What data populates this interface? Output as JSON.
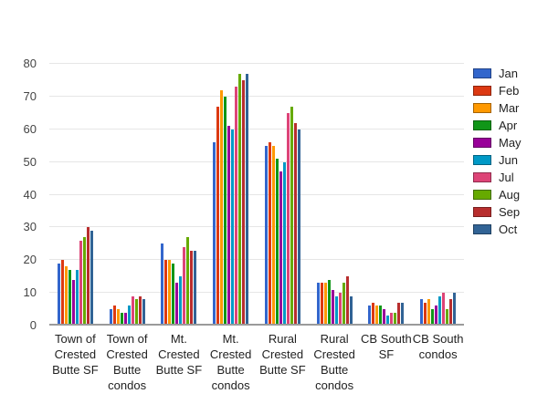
{
  "chart_data": {
    "type": "bar",
    "title": "",
    "xlabel": "",
    "ylabel": "",
    "ylim": [
      0,
      80
    ],
    "yticks": [
      0,
      10,
      20,
      30,
      40,
      50,
      60,
      70,
      80
    ],
    "grid": true,
    "legend_position": "right",
    "axis_color": "#9a9a9a",
    "gridline_color": "#e6e6e6",
    "categories": [
      "Town of Crested Butte SF",
      "Town of Crested Butte condos",
      "Mt. Crested Butte SF",
      "Mt. Crested Butte condos",
      "Rural Crested Butte SF",
      "Rural Crested Butte condos",
      "CB South SF",
      "CB South condos"
    ],
    "category_label_lines": [
      [
        "Town of",
        "Crested",
        "Butte SF"
      ],
      [
        "Town of",
        "Crested",
        "Butte",
        "condos"
      ],
      [
        "Mt.",
        "Crested",
        "Butte SF"
      ],
      [
        "Mt.",
        "Crested",
        "Butte",
        "condos"
      ],
      [
        "Rural",
        "Crested",
        "Butte SF"
      ],
      [
        "Rural",
        "Crested",
        "Butte",
        "condos"
      ],
      [
        "CB South",
        "SF"
      ],
      [
        "CB South",
        "condos"
      ]
    ],
    "series": [
      {
        "name": "Jan",
        "color": "#3366CC",
        "values": [
          19,
          5,
          25,
          56,
          55,
          13,
          6,
          8
        ]
      },
      {
        "name": "Feb",
        "color": "#DC3912",
        "values": [
          20,
          6,
          20,
          67,
          56,
          13,
          7,
          7
        ]
      },
      {
        "name": "Mar",
        "color": "#FF9900",
        "values": [
          18,
          5,
          20,
          72,
          55,
          13,
          6,
          8
        ]
      },
      {
        "name": "Apr",
        "color": "#109618",
        "values": [
          17,
          4,
          19,
          70,
          51,
          14,
          6,
          5
        ]
      },
      {
        "name": "May",
        "color": "#990099",
        "values": [
          14,
          4,
          13,
          61,
          47,
          11,
          5,
          6
        ]
      },
      {
        "name": "Jun",
        "color": "#0099C6",
        "values": [
          17,
          6,
          15,
          60,
          50,
          9,
          3,
          9
        ]
      },
      {
        "name": "Jul",
        "color": "#DD4477",
        "values": [
          26,
          9,
          24,
          73,
          65,
          10,
          4,
          10
        ]
      },
      {
        "name": "Aug",
        "color": "#66AA00",
        "values": [
          27,
          8,
          27,
          77,
          67,
          13,
          4,
          5
        ]
      },
      {
        "name": "Sep",
        "color": "#B82E2E",
        "values": [
          30,
          9,
          23,
          75,
          62,
          15,
          7,
          8
        ]
      },
      {
        "name": "Oct",
        "color": "#316395",
        "values": [
          29,
          8,
          23,
          77,
          60,
          9,
          7,
          10
        ]
      }
    ]
  }
}
